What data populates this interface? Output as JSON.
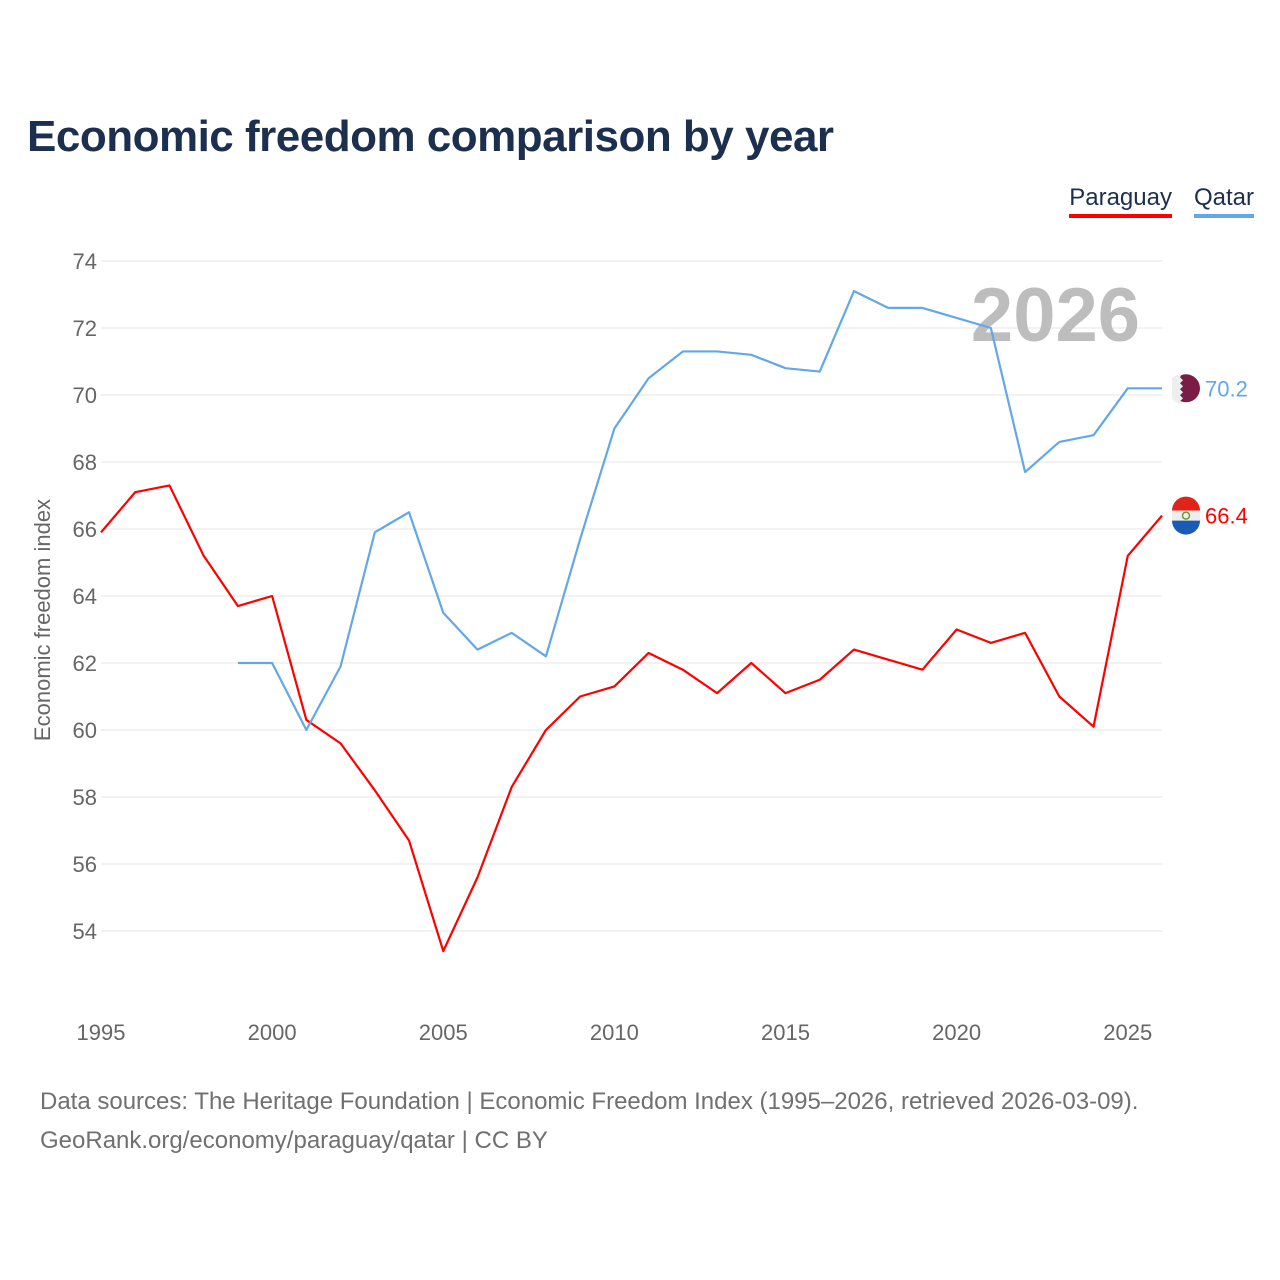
{
  "chart_data": {
    "type": "line",
    "title": "Economic freedom comparison by year",
    "xlabel": "",
    "ylabel": "Economic freedom index",
    "xlim": [
      1995,
      2026
    ],
    "ylim": [
      54,
      74
    ],
    "x_ticks": [
      1995,
      2000,
      2005,
      2010,
      2015,
      2020,
      2025
    ],
    "y_ticks": [
      54,
      56,
      58,
      60,
      62,
      64,
      66,
      68,
      70,
      72,
      74
    ],
    "grid": true,
    "legend_position": "top-right",
    "year_watermark": "2026",
    "series": [
      {
        "name": "Paraguay",
        "color": "#ff0000",
        "end_label": "66.4",
        "x": [
          1995,
          1996,
          1997,
          1998,
          1999,
          2000,
          2001,
          2002,
          2003,
          2004,
          2005,
          2006,
          2007,
          2008,
          2009,
          2010,
          2011,
          2012,
          2013,
          2014,
          2015,
          2016,
          2017,
          2018,
          2019,
          2020,
          2021,
          2022,
          2023,
          2024,
          2025,
          2026
        ],
        "values": [
          65.9,
          67.1,
          67.3,
          65.2,
          63.7,
          64.0,
          60.3,
          59.6,
          58.2,
          56.7,
          53.4,
          55.6,
          58.3,
          60.0,
          61.0,
          61.3,
          62.3,
          61.8,
          61.1,
          62.0,
          61.1,
          61.5,
          62.4,
          62.1,
          61.8,
          63.0,
          62.6,
          62.9,
          61.0,
          60.1,
          65.2,
          66.4
        ]
      },
      {
        "name": "Qatar",
        "color": "#62a8e8",
        "end_label": "70.2",
        "x": [
          1999,
          2000,
          2001,
          2002,
          2003,
          2004,
          2005,
          2006,
          2007,
          2008,
          2009,
          2010,
          2011,
          2012,
          2013,
          2014,
          2015,
          2016,
          2017,
          2018,
          2019,
          2020,
          2021,
          2022,
          2023,
          2024,
          2025,
          2026
        ],
        "values": [
          62.0,
          62.0,
          60.0,
          61.9,
          65.9,
          66.5,
          63.5,
          62.4,
          62.9,
          62.2,
          65.7,
          69.0,
          70.5,
          71.3,
          71.3,
          71.2,
          70.8,
          70.7,
          73.1,
          72.6,
          72.6,
          72.3,
          72.0,
          67.7,
          68.6,
          68.8,
          70.2,
          70.2
        ]
      }
    ]
  },
  "footer": {
    "line1": "Data sources: The Heritage Foundation | Economic Freedom Index (1995–2026, retrieved 2026-03-09).",
    "line2": "GeoRank.org/economy/paraguay/qatar | CC BY"
  }
}
